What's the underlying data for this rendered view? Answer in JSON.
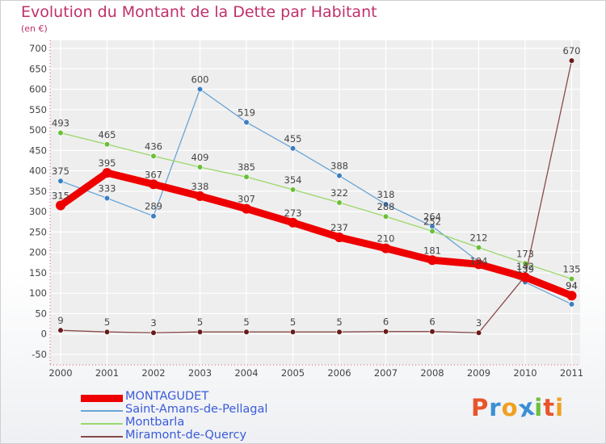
{
  "header": {
    "title": "Evolution du Montant de la Dette par Habitant",
    "unit": "(en €)"
  },
  "logo": {
    "text": "Proxiti",
    "letter_colors": [
      "#e8542a",
      "#3a8fd6",
      "#f0a020",
      "#3a8fd6",
      "#6cbf3a",
      "#e8542a",
      "#f0a020"
    ]
  },
  "chart_data": {
    "type": "line",
    "title": "Evolution du Montant de la Dette par Habitant",
    "ylabel": "(en €)",
    "xlabel": "",
    "categories": [
      "2000",
      "2001",
      "2002",
      "2003",
      "2004",
      "2005",
      "2006",
      "2007",
      "2008",
      "2009",
      "2010",
      "2011"
    ],
    "ylim": [
      -50,
      700
    ],
    "yticks": [
      -50,
      0,
      50,
      100,
      150,
      200,
      250,
      300,
      350,
      400,
      450,
      500,
      550,
      600,
      650,
      700
    ],
    "grid": true,
    "legend_position": "bottom-left",
    "series": [
      {
        "name": "MONTAGUDET",
        "color": "#ee0000",
        "point_color": "#ee0000",
        "width": 9,
        "values": [
          315,
          395,
          367,
          338,
          307,
          273,
          237,
          210,
          181,
          171,
          139,
          94
        ],
        "labels": [
          "315",
          "395",
          "367",
          "338",
          "307",
          "273",
          "237",
          "210",
          "181",
          "",
          "",
          "94"
        ]
      },
      {
        "name": "Saint-Amans-de-Pellagal",
        "color": "#6aa4d6",
        "point_color": "#3c7fc4",
        "width": 1.3,
        "values": [
          375,
          333,
          289,
          600,
          519,
          455,
          388,
          318,
          264,
          177,
          127,
          73
        ],
        "labels": [
          "375",
          "333",
          "289",
          "600",
          "519",
          "455",
          "388",
          "318",
          "264",
          "",
          "",
          ""
        ]
      },
      {
        "name": "Montbarla",
        "color": "#9ad86a",
        "point_color": "#6cbf3a",
        "width": 1.3,
        "values": [
          493,
          465,
          436,
          409,
          385,
          354,
          322,
          288,
          252,
          212,
          173,
          135
        ],
        "labels": [
          "493",
          "465",
          "436",
          "409",
          "385",
          "354",
          "322",
          "288",
          "252",
          "212",
          "173",
          "135"
        ]
      },
      {
        "name": "Miramont-de-Quercy",
        "color": "#8a4a4a",
        "point_color": "#6a1a1a",
        "width": 1.3,
        "values": [
          9,
          5,
          3,
          5,
          5,
          5,
          5,
          6,
          6,
          3,
          142,
          670
        ],
        "labels": [
          "9",
          "5",
          "3",
          "5",
          "5",
          "5",
          "5",
          "6",
          "6",
          "3",
          "142",
          "670"
        ]
      }
    ],
    "extra_labels": [
      "194",
      "139",
      "94"
    ]
  }
}
